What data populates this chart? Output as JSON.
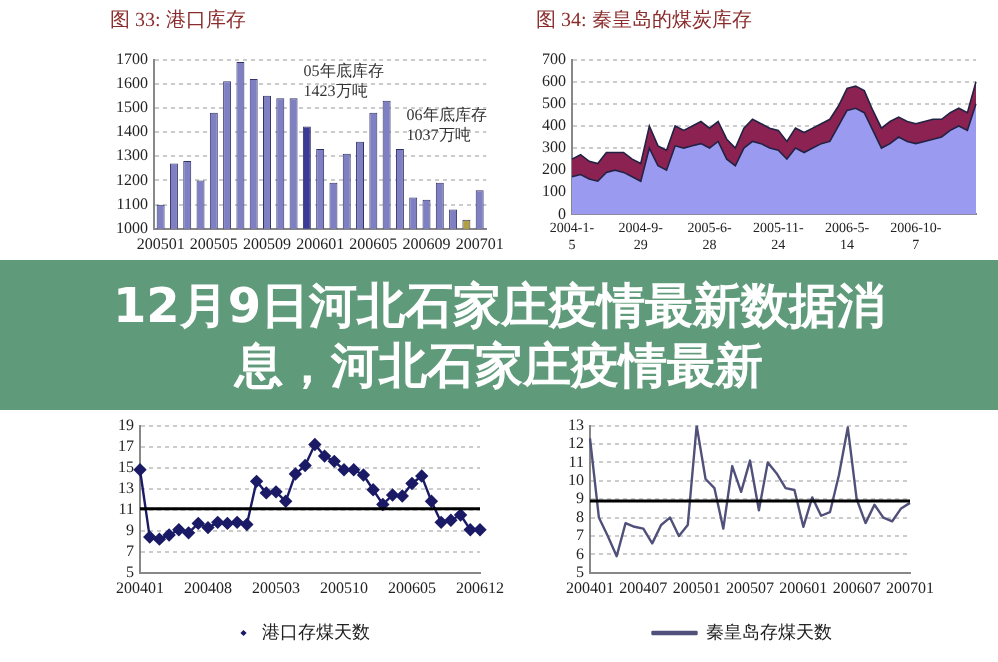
{
  "chart_data": [
    {
      "type": "bar",
      "title": "图 33: 港口库存",
      "categories": [
        "200501",
        null,
        null,
        null,
        "200505",
        null,
        null,
        null,
        "200509",
        null,
        null,
        null,
        "200601",
        null,
        null,
        null,
        "200605",
        null,
        null,
        null,
        "200609",
        null,
        null,
        null,
        "200701"
      ],
      "values": [
        1100,
        1270,
        1280,
        1200,
        1480,
        1610,
        1690,
        1620,
        1550,
        1540,
        1540,
        1423,
        1330,
        1190,
        1310,
        1360,
        1480,
        1530,
        1330,
        1130,
        1120,
        1190,
        1080,
        1037,
        1160
      ],
      "colors": [
        "#7f7fc4",
        "#7f7fc4",
        "#7f7fc4",
        "#7f7fc4",
        "#7f7fc4",
        "#7f7fc4",
        "#7f7fc4",
        "#7f7fc4",
        "#7f7fc4",
        "#7f7fc4",
        "#7f7fc4",
        "#3b3b96",
        "#7f7fc4",
        "#7f7fc4",
        "#7f7fc4",
        "#7f7fc4",
        "#7f7fc4",
        "#7f7fc4",
        "#7f7fc4",
        "#7f7fc4",
        "#7f7fc4",
        "#7f7fc4",
        "#7f7fc4",
        "#b0a040",
        "#7f7fc4"
      ],
      "ylim": [
        1000,
        1700
      ],
      "yticks": [
        1000,
        1100,
        1200,
        1300,
        1400,
        1500,
        1600,
        1700
      ],
      "grid": "y",
      "legend": false,
      "annotations": [
        "05年底库存\n1423万吨",
        "06年底库存\n1037万吨"
      ]
    },
    {
      "type": "area",
      "title": "图 34: 秦皇岛的煤炭库存",
      "stacked": true,
      "categories": [
        "2004-1-5",
        null,
        null,
        null,
        null,
        null,
        null,
        null,
        "2004-9-29",
        null,
        null,
        null,
        null,
        null,
        null,
        null,
        "2005-6-28",
        null,
        null,
        null,
        null,
        null,
        null,
        null,
        "2005-11-24",
        null,
        null,
        null,
        null,
        null,
        null,
        null,
        "2006-5-14",
        null,
        null,
        null,
        null,
        null,
        null,
        null,
        "2006-10-7",
        null,
        null,
        null,
        null,
        null,
        null,
        null
      ],
      "series": [
        {
          "color": "#9a9af0",
          "values": [
            170,
            180,
            160,
            150,
            190,
            200,
            190,
            170,
            150,
            300,
            220,
            200,
            310,
            300,
            310,
            320,
            300,
            330,
            250,
            220,
            300,
            330,
            320,
            300,
            290,
            250,
            300,
            280,
            300,
            320,
            330,
            400,
            470,
            480,
            460,
            380,
            300,
            320,
            350,
            330,
            320,
            330,
            340,
            350,
            380,
            400,
            380,
            500
          ]
        },
        {
          "color": "#8b2252",
          "values": [
            80,
            90,
            80,
            80,
            90,
            80,
            90,
            80,
            80,
            100,
            90,
            90,
            90,
            80,
            90,
            100,
            90,
            90,
            90,
            80,
            90,
            100,
            90,
            90,
            90,
            80,
            90,
            90,
            90,
            90,
            100,
            90,
            100,
            100,
            100,
            90,
            90,
            100,
            90,
            90,
            90,
            90,
            90,
            80,
            80,
            80,
            80,
            100
          ]
        }
      ],
      "ylim": [
        0,
        700
      ],
      "yticks": [
        0,
        100,
        200,
        300,
        400,
        500,
        600,
        700
      ],
      "grid": "y",
      "legend": false
    },
    {
      "type": "other",
      "title": "12月9日河北石家庄疫情最新数据消息，河北石家庄疫情最新"
    },
    {
      "type": "line",
      "categories": [
        "200401",
        null,
        null,
        null,
        null,
        null,
        null,
        "200408",
        null,
        null,
        null,
        null,
        null,
        null,
        "200503",
        null,
        null,
        null,
        null,
        null,
        null,
        "200510",
        null,
        null,
        null,
        null,
        null,
        null,
        "200605",
        null,
        null,
        null,
        null,
        null,
        null,
        "200612"
      ],
      "series": [
        {
          "name": "港口存煤天数",
          "color": "#1a1a66",
          "values": [
            14.8,
            8.4,
            8.2,
            8.6,
            9.1,
            8.8,
            9.7,
            9.3,
            9.8,
            9.7,
            9.8,
            9.6,
            13.7,
            12.6,
            12.7,
            11.8,
            14.4,
            15.2,
            17.2,
            16.1,
            15.6,
            14.8,
            14.8,
            14.3,
            12.9,
            11.5,
            12.4,
            12.3,
            13.5,
            14.2,
            11.8,
            9.8,
            10.0,
            10.5,
            9.1,
            9.1
          ]
        }
      ],
      "ylim": [
        5,
        19
      ],
      "yticks": [
        5,
        7,
        9,
        11,
        13,
        15,
        17,
        19
      ],
      "grid": "y",
      "legend": "bottom",
      "marker": "diamond",
      "line_style": "solid",
      "ref_lines": [
        {
          "axis": "y",
          "value": 11.1,
          "color": "#000000"
        }
      ]
    },
    {
      "type": "line",
      "categories": [
        "200401",
        null,
        null,
        null,
        null,
        null,
        "200407",
        null,
        null,
        null,
        null,
        null,
        "200501",
        null,
        null,
        null,
        null,
        null,
        "200507",
        null,
        null,
        null,
        null,
        null,
        "200601",
        null,
        null,
        null,
        null,
        null,
        "200607",
        null,
        null,
        null,
        null,
        null,
        "200701"
      ],
      "series": [
        {
          "name": "秦皇岛存煤天数",
          "color": "#50507a",
          "values": [
            12.3,
            8,
            7,
            5.9,
            7.7,
            7.5,
            7.4,
            6.6,
            7.6,
            8.0,
            7.0,
            7.6,
            13.0,
            10.1,
            9.6,
            7.4,
            10.8,
            9.4,
            11.1,
            8.4,
            11.0,
            10.4,
            9.6,
            9.5,
            7.5,
            9.1,
            8.1,
            8.3,
            10.3,
            12.9,
            9.0,
            7.7,
            8.7,
            8.0,
            7.8,
            8.5,
            8.8
          ]
        }
      ],
      "ylim": [
        5,
        13
      ],
      "yticks": [
        5,
        6,
        7,
        8,
        9,
        10,
        11,
        12,
        13
      ],
      "grid": "y",
      "legend": "bottom",
      "marker": "none",
      "line_style": "solid",
      "ref_lines": [
        {
          "axis": "y",
          "value": 8.9,
          "color": "#000000"
        }
      ]
    }
  ]
}
